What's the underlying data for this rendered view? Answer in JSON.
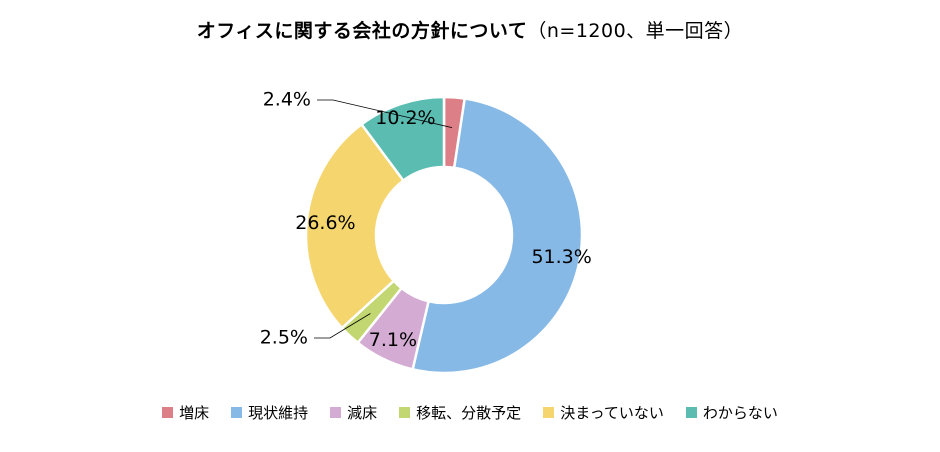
{
  "chart_data": {
    "type": "pie",
    "variant": "donut",
    "title": "オフィスに関する会社の方針について",
    "subtitle": "（n=1200、単一回答）",
    "categories": [
      "増床",
      "現状維持",
      "減床",
      "移転、分散予定",
      "決まっていない",
      "わからない"
    ],
    "values": [
      2.4,
      51.3,
      7.1,
      2.5,
      26.6,
      10.2
    ],
    "labels": [
      "2.4%",
      "51.3%",
      "7.1%",
      "2.5%",
      "26.6%",
      "10.2%"
    ],
    "colors": [
      "#dc7f86",
      "#86b9e6",
      "#d3abd3",
      "#c2d671",
      "#f5d56e",
      "#5bbdb2"
    ],
    "legend_position": "bottom"
  }
}
